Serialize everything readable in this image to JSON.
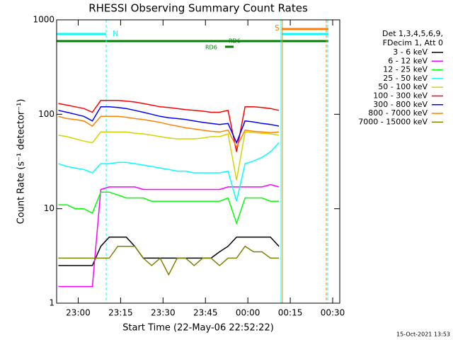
{
  "chart_data": {
    "type": "line",
    "title": "RHESSI Observing Summary Count Rates",
    "x_label": "Start Time (22-May-06 22:52:22)",
    "y_label": "Count Rate (s⁻¹ detector⁻¹)",
    "legend_header": [
      "Det 1,3,4,5,6,9,",
      "FDecim 1, Att 0"
    ],
    "footer": "15-Oct-2021 13:53",
    "annotations": [
      "N",
      "S",
      "RD6",
      "RD6"
    ],
    "log_y": true,
    "xlim": [
      1372.37,
      1472.5
    ],
    "ylim": [
      1,
      1000
    ],
    "xticks": [
      {
        "value": 1380,
        "label": "23:00"
      },
      {
        "value": 1395,
        "label": "23:15"
      },
      {
        "value": 1410,
        "label": "23:30"
      },
      {
        "value": 1425,
        "label": "23:45"
      },
      {
        "value": 1440,
        "label": "00:00"
      },
      {
        "value": 1455,
        "label": "00:15"
      },
      {
        "value": 1470,
        "label": "00:30"
      }
    ],
    "yticks": [
      1,
      10,
      100,
      1000
    ],
    "x": [
      1373,
      1376,
      1379,
      1382,
      1385,
      1388,
      1391,
      1394,
      1397,
      1400,
      1403,
      1406,
      1409,
      1412,
      1415,
      1418,
      1421,
      1424,
      1427,
      1430,
      1433,
      1436,
      1439,
      1442,
      1445,
      1448,
      1451
    ],
    "series": [
      {
        "name": "3 - 6 keV",
        "color": "#000000",
        "values": [
          2.5,
          2.5,
          2.5,
          2.5,
          2.5,
          4,
          5,
          5,
          5,
          4,
          3,
          3,
          3,
          3,
          3,
          3,
          3,
          3,
          3,
          3.5,
          4,
          5,
          5,
          5,
          5,
          5,
          4
        ]
      },
      {
        "name": "6 - 12 keV",
        "color": "#ff00ff",
        "values": [
          1.5,
          1.5,
          1.5,
          1.5,
          1.5,
          16,
          17,
          17,
          17,
          17,
          16,
          16,
          16,
          16,
          16,
          16,
          16,
          16,
          16,
          16,
          17,
          17,
          17,
          17,
          17,
          18,
          17
        ]
      },
      {
        "name": "12 - 25 keV",
        "color": "#00ff00",
        "values": [
          11,
          11,
          10,
          10,
          9,
          15,
          15,
          14,
          13,
          13,
          13,
          12,
          12,
          12,
          12,
          12,
          12,
          12,
          12,
          12,
          13,
          7,
          13,
          13,
          13,
          12,
          12
        ]
      },
      {
        "name": "25 - 50 keV",
        "color": "#00ffff",
        "values": [
          30,
          28,
          27,
          26,
          24,
          30,
          30,
          31,
          31,
          30,
          29,
          28,
          27,
          26,
          25,
          25,
          24,
          24,
          24,
          24,
          25,
          12,
          30,
          32,
          35,
          40,
          50
        ]
      },
      {
        "name": "50 - 100 keV",
        "color": "#d4d400",
        "values": [
          60,
          58,
          55,
          52,
          50,
          65,
          65,
          65,
          65,
          63,
          62,
          60,
          58,
          56,
          55,
          55,
          55,
          56,
          58,
          58,
          62,
          20,
          65,
          64,
          63,
          62,
          60
        ]
      },
      {
        "name": "100 - 300 keV",
        "color": "#ff0000",
        "values": [
          130,
          125,
          120,
          115,
          105,
          140,
          140,
          140,
          138,
          135,
          130,
          125,
          120,
          118,
          115,
          112,
          110,
          108,
          105,
          105,
          110,
          40,
          120,
          120,
          118,
          115,
          110
        ]
      },
      {
        "name": "300 - 800 keV",
        "color": "#0000ff",
        "values": [
          110,
          105,
          100,
          95,
          85,
          120,
          120,
          118,
          115,
          110,
          105,
          100,
          95,
          92,
          90,
          88,
          85,
          82,
          80,
          78,
          80,
          50,
          85,
          83,
          80,
          78,
          75
        ]
      },
      {
        "name": "800 - 7000 keV",
        "color": "#ff8000",
        "values": [
          95,
          90,
          88,
          85,
          75,
          95,
          95,
          95,
          93,
          90,
          88,
          85,
          82,
          78,
          75,
          72,
          70,
          68,
          66,
          65,
          68,
          45,
          68,
          66,
          65,
          64,
          65
        ]
      },
      {
        "name": "7000 - 15000 keV",
        "color": "#808000",
        "values": [
          3,
          3,
          3,
          3,
          3,
          3,
          3,
          4,
          4,
          4,
          3,
          2.5,
          3,
          2,
          3,
          3,
          2.5,
          3,
          3,
          2.5,
          3,
          3,
          4,
          3.5,
          3.5,
          3,
          3
        ]
      }
    ]
  }
}
